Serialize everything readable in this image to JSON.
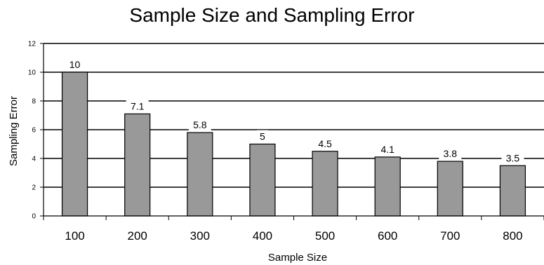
{
  "chart_data": {
    "type": "bar",
    "title": "Sample Size and Sampling Error",
    "xlabel": "Sample Size",
    "ylabel": "Sampling Error",
    "categories": [
      "100",
      "200",
      "300",
      "400",
      "500",
      "600",
      "700",
      "800"
    ],
    "values": [
      10,
      7.1,
      5.8,
      5,
      4.5,
      4.1,
      3.8,
      3.5
    ],
    "data_labels": [
      "10",
      "7.1",
      "5.8",
      "5",
      "4.5",
      "4.1",
      "3.8",
      "3.5"
    ],
    "ylim": [
      0,
      12
    ],
    "yticks": [
      "0",
      "2",
      "4",
      "6",
      "8",
      "10",
      "12"
    ],
    "grid": true,
    "bar_color": "#999999",
    "legend": "none"
  }
}
